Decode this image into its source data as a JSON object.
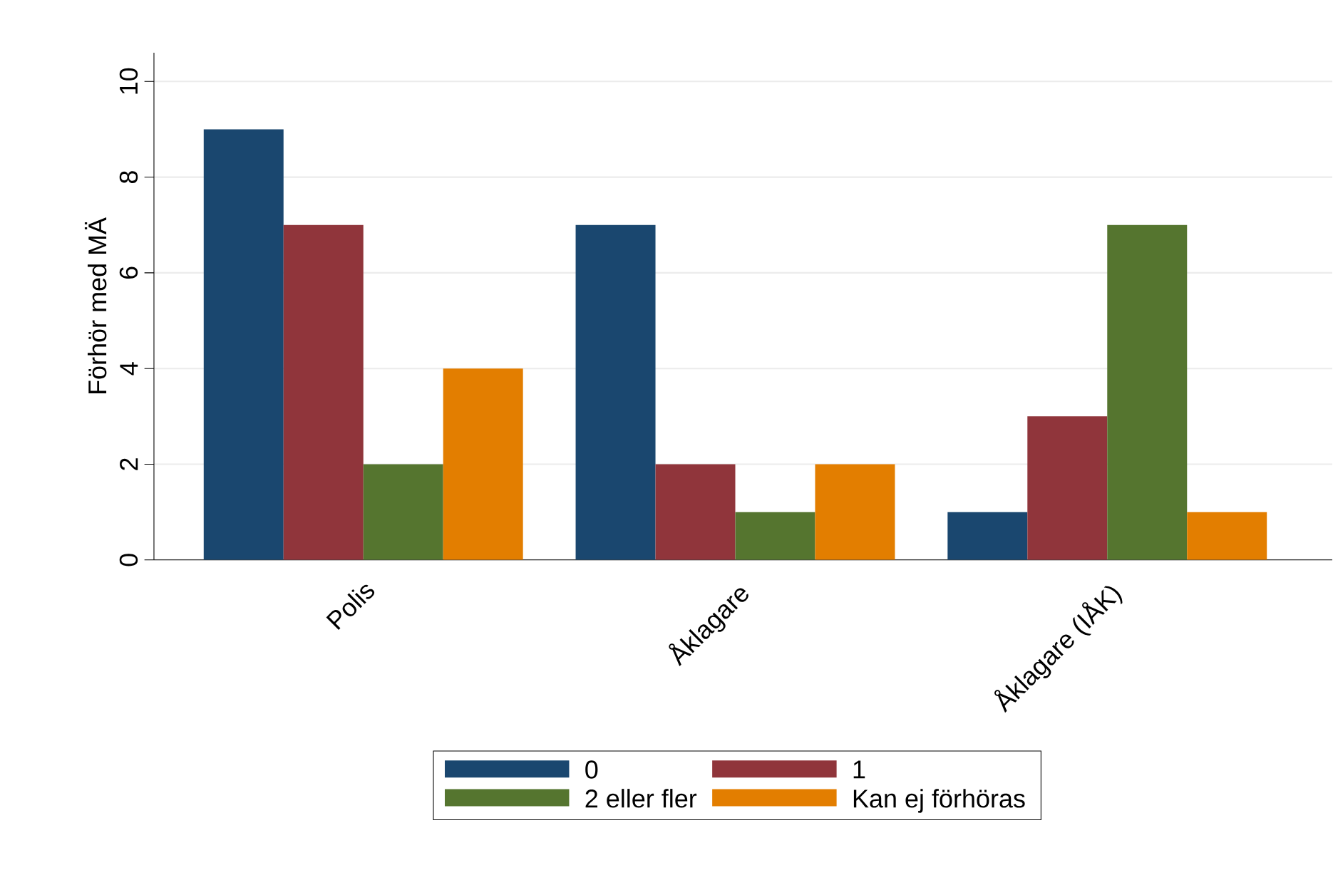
{
  "chart_data": {
    "type": "bar",
    "ylabel": "Förhör med MÄ",
    "categories": [
      "Polis",
      "Åklagare",
      "Åklagare (IÅK)"
    ],
    "series": [
      {
        "name": "0",
        "color": "#1a476f",
        "values": [
          9,
          7,
          1
        ]
      },
      {
        "name": "1",
        "color": "#90353b",
        "values": [
          7,
          2,
          3
        ]
      },
      {
        "name": "2 eller fler",
        "color": "#55752f",
        "values": [
          2,
          1,
          7
        ]
      },
      {
        "name": "Kan ej förhöras",
        "color": "#e37e00",
        "values": [
          4,
          2,
          1
        ]
      }
    ],
    "ylim": [
      0,
      10.6
    ],
    "yticks": [
      0,
      2,
      4,
      6,
      8,
      10
    ],
    "grid": "y",
    "legend": "bottom"
  }
}
